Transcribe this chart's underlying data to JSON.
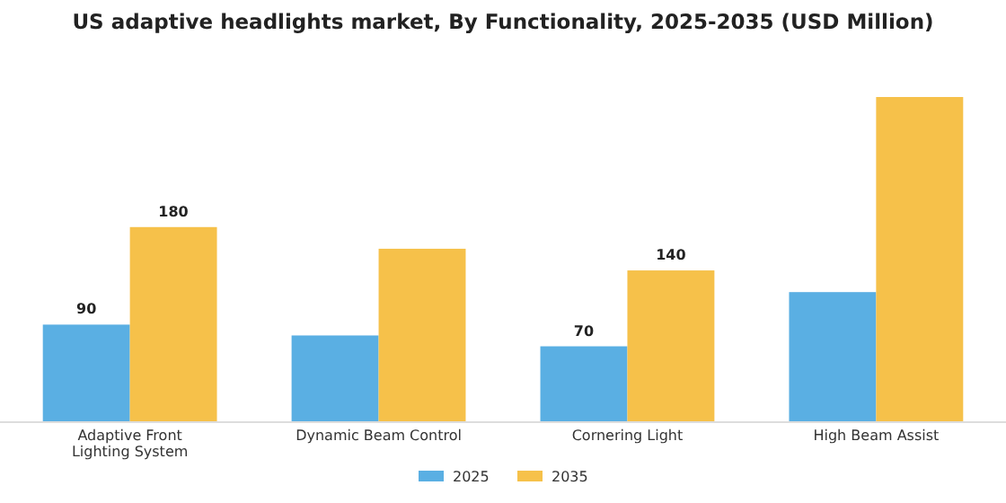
{
  "chart_data": {
    "type": "bar",
    "title": "US adaptive headlights market, By Functionality, 2025-2035 (USD Million)",
    "categories": [
      "Adaptive Front Lighting System",
      "Dynamic Beam Control",
      "Cornering Light",
      "High Beam Assist"
    ],
    "series": [
      {
        "name": "2025",
        "color": "#5aafe3",
        "values": [
          90,
          80,
          70,
          120
        ],
        "value_labels": [
          "90",
          null,
          "70",
          null
        ]
      },
      {
        "name": "2035",
        "color": "#f6c14a",
        "values": [
          180,
          160,
          140,
          300
        ],
        "value_labels": [
          "180",
          null,
          "140",
          null
        ]
      }
    ],
    "legend": "bottom"
  }
}
